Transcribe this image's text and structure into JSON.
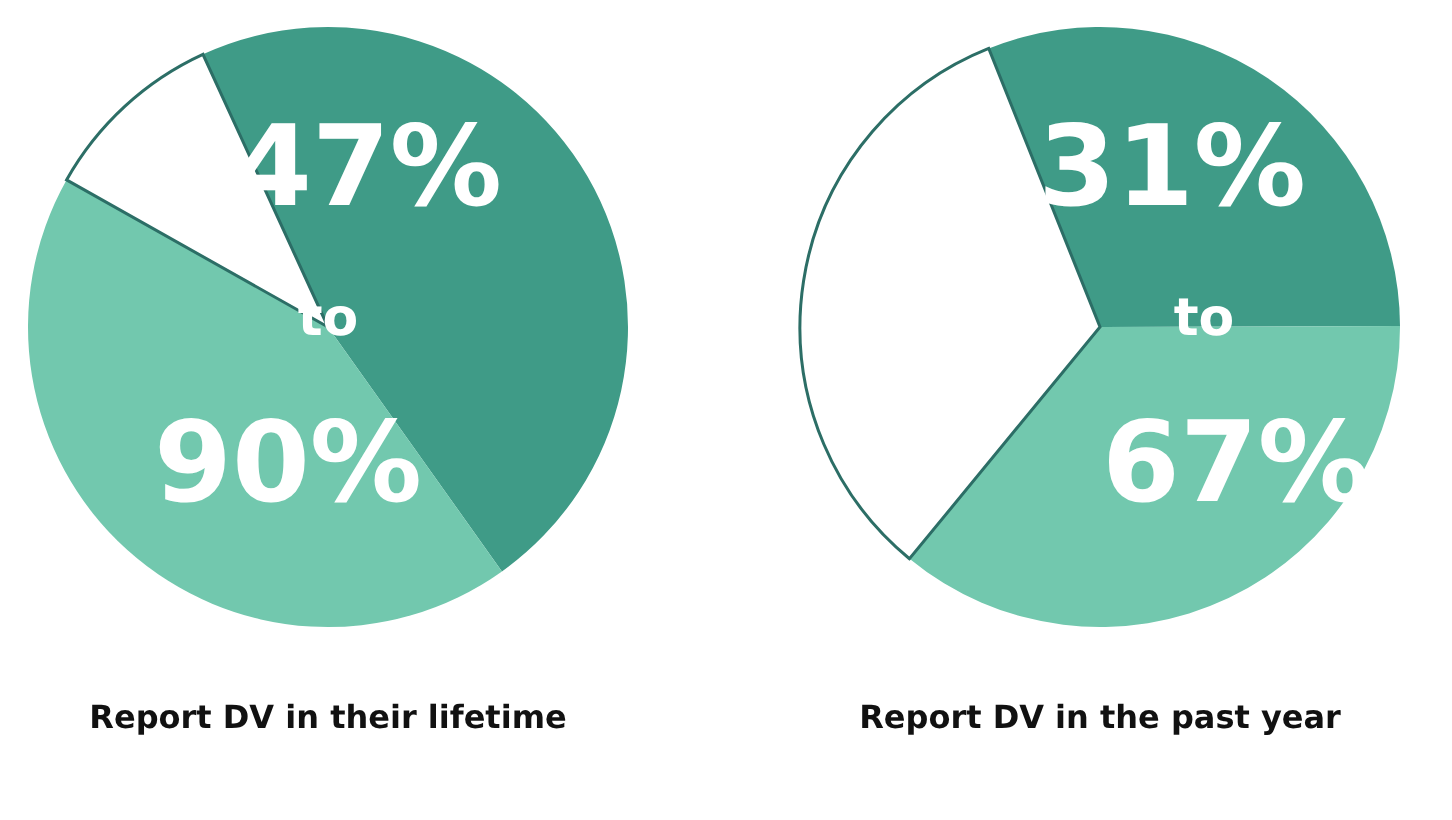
{
  "chart_data": [
    {
      "type": "pie",
      "title": "Report DV in their lifetime",
      "categories": [
        null,
        null,
        null
      ],
      "values": [
        47,
        43,
        10
      ],
      "colors": [
        "#3f9b87",
        "#72c8ae",
        "#ffffff"
      ],
      "annotations": [
        "47%",
        "to",
        "90%"
      ]
    },
    {
      "type": "pie",
      "title": "Report DV in the past year",
      "categories": [
        null,
        null,
        null
      ],
      "values": [
        31,
        36,
        33
      ],
      "colors": [
        "#3f9b87",
        "#72c8ae",
        "#ffffff"
      ],
      "annotations": [
        "31%",
        "to",
        "67%"
      ]
    }
  ]
}
